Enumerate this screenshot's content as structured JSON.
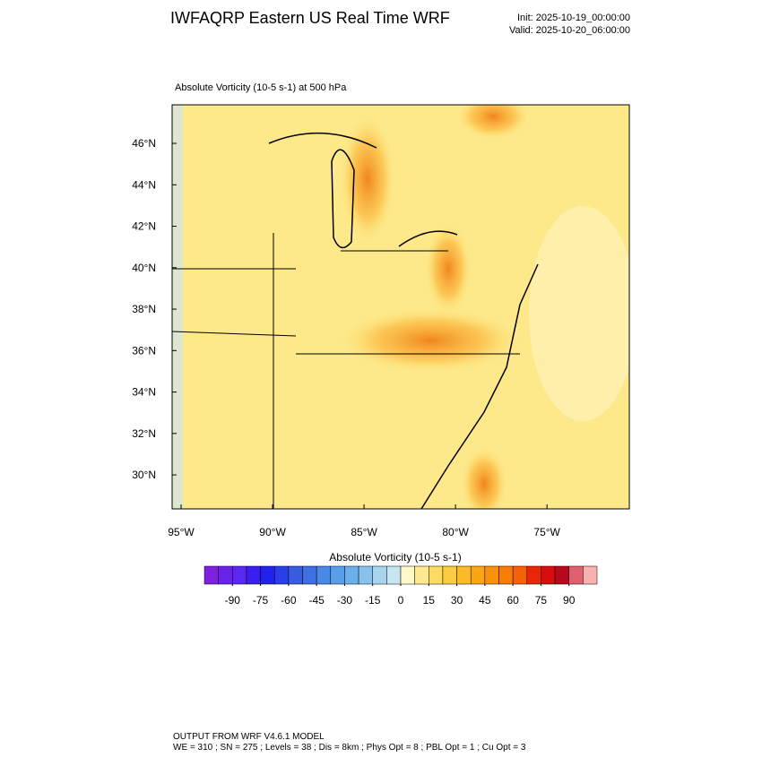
{
  "header": {
    "title": "IWFAQRP Eastern US Real Time WRF",
    "init": "Init: 2025-10-19_00:00:00",
    "valid": "Valid: 2025-10-20_06:00:00"
  },
  "map": {
    "subtitle": "Absolute Vorticity   (10-5 s-1)     at   500 hPa",
    "lat_range": [
      28.36,
      47.86
    ],
    "lon_range": [
      -95.49,
      -70.5
    ],
    "lat_ticks": [
      {
        "value": 46,
        "label": "46°N"
      },
      {
        "value": 44,
        "label": "44°N"
      },
      {
        "value": 42,
        "label": "42°N"
      },
      {
        "value": 40,
        "label": "40°N"
      },
      {
        "value": 38,
        "label": "38°N"
      },
      {
        "value": 36,
        "label": "36°N"
      },
      {
        "value": 34,
        "label": "34°N"
      },
      {
        "value": 32,
        "label": "32°N"
      },
      {
        "value": 30,
        "label": "30°N"
      }
    ],
    "lon_ticks": [
      {
        "value": -95,
        "label": "95°W"
      },
      {
        "value": -90,
        "label": "90°W"
      },
      {
        "value": -85,
        "label": "85°W"
      },
      {
        "value": -80,
        "label": "80°W"
      },
      {
        "value": -75,
        "label": "75°W"
      }
    ]
  },
  "colorbar": {
    "title": "Absolute Vorticity  (10-5 s-1)",
    "range": [
      -105,
      105
    ],
    "ticks": [
      -90,
      -75,
      -60,
      -45,
      -30,
      -15,
      0,
      15,
      30,
      45,
      60,
      75,
      90
    ],
    "colors": [
      "#7f1fe0",
      "#6a22e8",
      "#5a28f0",
      "#3c1ff0",
      "#2222ee",
      "#2a3fe8",
      "#3a5ae0",
      "#3f6fe0",
      "#4a88e6",
      "#5a9de8",
      "#6ab0ea",
      "#88c2ec",
      "#a8d4ee",
      "#c8e4f0",
      "#fff8c8",
      "#fee890",
      "#fdda62",
      "#fccc40",
      "#fbbb28",
      "#faa614",
      "#f9920a",
      "#f87c06",
      "#f56204",
      "#ea2608",
      "#d80e0e",
      "#b80a1e",
      "#e06070",
      "#f8b0b0"
    ]
  },
  "footer": {
    "line1": "OUTPUT FROM WRF V4.6.1 MODEL",
    "line2": "WE = 310 ; SN = 275 ; Levels = 38 ; Dis = 8km ; Phys Opt = 8 ; PBL Opt = 1 ; Cu Opt = 3"
  }
}
